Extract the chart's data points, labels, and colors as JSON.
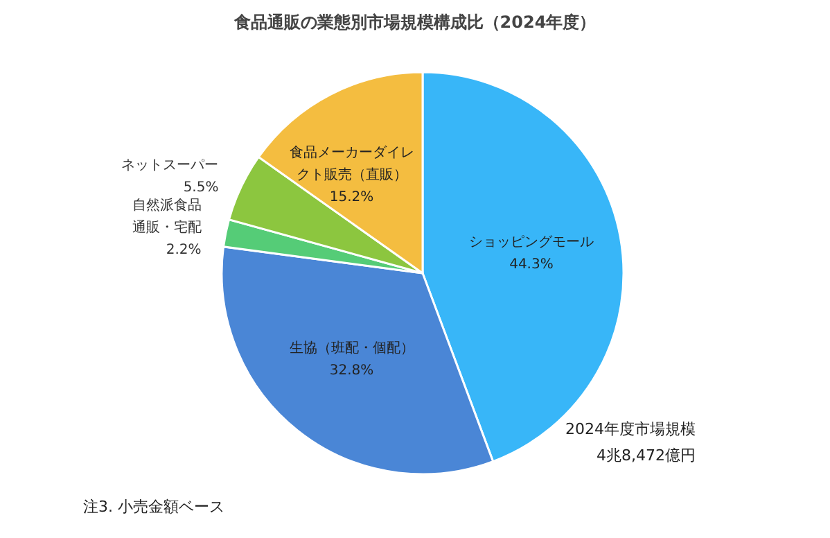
{
  "chart_data": {
    "type": "pie",
    "title": "食品通販の業態別市場規模構成比（2024年度）",
    "categories": [
      "ショッピングモール",
      "生協（班配・個配）",
      "自然派食品通販・宅配",
      "ネットスーパー",
      "食品メーカーダイレクト販売（直販）"
    ],
    "values": [
      44.3,
      32.8,
      2.2,
      5.5,
      15.2
    ],
    "colors": [
      "#38b6f8",
      "#4a86d6",
      "#55cc77",
      "#8cc63f",
      "#f4bd40"
    ],
    "value_labels": [
      "44.3%",
      "32.8%",
      "2.2%",
      "5.5%",
      "15.2%"
    ],
    "legend": false,
    "annotations": [
      "2024年度市場規模\n4兆8,472億円",
      "注3. 小売金額ベース"
    ]
  }
}
